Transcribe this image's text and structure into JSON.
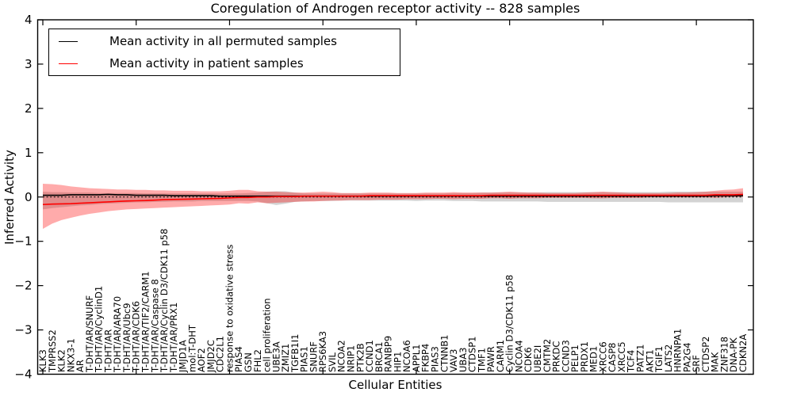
{
  "chart_data": {
    "type": "line",
    "title": "Coregulation of Androgen receptor activity -- 828 samples",
    "xlabel": "Cellular Entities",
    "ylabel": "Inferred Activity",
    "ylim": [
      -4,
      4
    ],
    "yticks": [
      -4,
      -3,
      -2,
      -1,
      0,
      1,
      2,
      3,
      4
    ],
    "x_major_tick_step": 10,
    "grid": false,
    "zero_line": true,
    "legend_position": "upper left",
    "legend": [
      "Mean activity in all permuted samples",
      "Mean activity in patient samples"
    ],
    "colors": {
      "permuted_line": "#000000",
      "patient_line": "#ff0000",
      "permuted_band": "rgba(128,128,128,0.35)",
      "patient_band": "rgba(255,0,0,0.33)"
    },
    "categories": [
      "KLK3",
      "TMPRSS2",
      "KLK2",
      "NKX3-1",
      "AR",
      "T-DHT/AR/SNURF",
      "T-DHT/AR/CyclinD1",
      "T-DHT/AR",
      "T-DHT/AR/ARA70",
      "T-DHT/AR/Ubc9",
      "T-DHT/AR/CDK6",
      "T-DHT/AR/TIF2/CARM1",
      "T-DHT/AR/Caspase 8",
      "T-DHT/AR/Cyclin D3/CDK11 p58",
      "T-DHT/AR/PRX1",
      "JMJD1A",
      "mol:T-DHT",
      "AOF2",
      "JMJD2C",
      "CDC2L1",
      "response to oxidative stress",
      "PIAS4",
      "GSN",
      "FHL2",
      "cell proliferation",
      "UBE3A",
      "ZMIZ1",
      "TGFB1I1",
      "PIAS1",
      "SNURF",
      "RPS6KA3",
      "SVIL",
      "NCOA2",
      "NRIP1",
      "PTK2B",
      "CCND1",
      "BRCA1",
      "RANBP9",
      "HIP1",
      "NCOA6",
      "APPL1",
      "FKBP4",
      "PIAS3",
      "CTNNB1",
      "VAV3",
      "UBA3",
      "CTDSP1",
      "TMF1",
      "PAWR",
      "CARM1",
      "Cyclin D3/CDK11 p58",
      "NCOA4",
      "CDK6",
      "UBE2I",
      "CMTM2",
      "PRKDC",
      "CCND3",
      "PELP1",
      "PRDX1",
      "MED1",
      "XRCC6",
      "CASP8",
      "XRCC5",
      "TCF4",
      "PATZ1",
      "AKT1",
      "TGIF1",
      "LATS2",
      "HNRNPA1",
      "PA2G4",
      "SRF",
      "CTDSP2",
      "MAK",
      "ZNF318",
      "DNA-PK",
      "CDKN2A"
    ],
    "series": [
      {
        "name": "Mean activity in all permuted samples",
        "color": "#000000",
        "values": [
          0.04,
          0.04,
          0.04,
          0.05,
          0.05,
          0.05,
          0.05,
          0.06,
          0.05,
          0.05,
          0.04,
          0.04,
          0.04,
          0.04,
          0.03,
          0.03,
          0.03,
          0.03,
          0.03,
          0.02,
          0.02,
          0.02,
          0.02,
          0.02,
          0.02,
          0.02,
          0.02,
          0.02,
          0.02,
          0.02,
          0.02,
          0.02,
          0.02,
          0.02,
          0.02,
          0.02,
          0.02,
          0.02,
          0.02,
          0.02,
          0.02,
          0.02,
          0.02,
          0.02,
          0.02,
          0.02,
          0.02,
          0.02,
          0.02,
          0.02,
          0.02,
          0.02,
          0.02,
          0.02,
          0.02,
          0.02,
          0.02,
          0.02,
          0.02,
          0.02,
          0.02,
          0.02,
          0.02,
          0.02,
          0.02,
          0.02,
          0.02,
          0.02,
          0.02,
          0.02,
          0.02,
          0.02,
          0.03,
          0.03,
          0.03,
          0.03
        ]
      },
      {
        "name": "Mean activity in patient samples",
        "color": "#ff0000",
        "values": [
          -0.17,
          -0.16,
          -0.155,
          -0.15,
          -0.14,
          -0.13,
          -0.12,
          -0.11,
          -0.1,
          -0.09,
          -0.085,
          -0.08,
          -0.07,
          -0.06,
          -0.055,
          -0.05,
          -0.045,
          -0.04,
          -0.035,
          -0.03,
          -0.02,
          -0.01,
          -0.01,
          0.0,
          0.0,
          0.01,
          0.01,
          0.01,
          0.02,
          0.02,
          0.02,
          0.02,
          0.02,
          0.02,
          0.02,
          0.03,
          0.03,
          0.03,
          0.03,
          0.03,
          0.03,
          0.03,
          0.03,
          0.03,
          0.03,
          0.03,
          0.03,
          0.03,
          0.04,
          0.04,
          0.04,
          0.04,
          0.04,
          0.04,
          0.04,
          0.04,
          0.04,
          0.04,
          0.04,
          0.04,
          0.04,
          0.04,
          0.04,
          0.04,
          0.04,
          0.04,
          0.04,
          0.04,
          0.04,
          0.04,
          0.04,
          0.04,
          0.05,
          0.05,
          0.05,
          0.06
        ]
      }
    ],
    "bands": [
      {
        "name": "permuted-envelope",
        "color": "rgba(128,128,128,0.35)",
        "upper": [
          0.12,
          0.11,
          0.11,
          0.1,
          0.1,
          0.1,
          0.09,
          0.09,
          0.09,
          0.09,
          0.09,
          0.08,
          0.08,
          0.08,
          0.08,
          0.08,
          0.08,
          0.08,
          0.08,
          0.08,
          0.08,
          0.08,
          0.09,
          0.1,
          0.12,
          0.13,
          0.13,
          0.1,
          0.08,
          0.08,
          0.08,
          0.08,
          0.08,
          0.08,
          0.08,
          0.08,
          0.08,
          0.08,
          0.08,
          0.08,
          0.08,
          0.08,
          0.08,
          0.08,
          0.09,
          0.09,
          0.09,
          0.1,
          0.1,
          0.1,
          0.1,
          0.1,
          0.1,
          0.1,
          0.11,
          0.11,
          0.11,
          0.11,
          0.11,
          0.11,
          0.11,
          0.11,
          0.11,
          0.11,
          0.11,
          0.11,
          0.11,
          0.12,
          0.12,
          0.12,
          0.12,
          0.12,
          0.12,
          0.12,
          0.12,
          0.12
        ],
        "lower": [
          -0.28,
          -0.25,
          -0.23,
          -0.21,
          -0.19,
          -0.18,
          -0.16,
          -0.15,
          -0.14,
          -0.13,
          -0.12,
          -0.12,
          -0.11,
          -0.11,
          -0.1,
          -0.1,
          -0.1,
          -0.09,
          -0.09,
          -0.09,
          -0.09,
          -0.09,
          -0.09,
          -0.1,
          -0.14,
          -0.18,
          -0.15,
          -0.11,
          -0.1,
          -0.09,
          -0.09,
          -0.09,
          -0.08,
          -0.08,
          -0.08,
          -0.08,
          -0.08,
          -0.08,
          -0.08,
          -0.08,
          -0.09,
          -0.08,
          -0.08,
          -0.08,
          -0.09,
          -0.09,
          -0.09,
          -0.1,
          -0.1,
          -0.1,
          -0.1,
          -0.1,
          -0.1,
          -0.1,
          -0.11,
          -0.11,
          -0.11,
          -0.11,
          -0.11,
          -0.11,
          -0.11,
          -0.11,
          -0.11,
          -0.11,
          -0.11,
          -0.11,
          -0.11,
          -0.12,
          -0.12,
          -0.12,
          -0.12,
          -0.12,
          -0.12,
          -0.12,
          -0.12,
          -0.12
        ]
      },
      {
        "name": "patient-envelope",
        "color": "rgba(255,0,0,0.33)",
        "upper": [
          0.3,
          0.29,
          0.27,
          0.24,
          0.22,
          0.2,
          0.19,
          0.18,
          0.17,
          0.17,
          0.16,
          0.16,
          0.15,
          0.15,
          0.14,
          0.14,
          0.14,
          0.13,
          0.13,
          0.13,
          0.14,
          0.16,
          0.16,
          0.13,
          0.12,
          0.12,
          0.11,
          0.1,
          0.1,
          0.11,
          0.12,
          0.11,
          0.09,
          0.09,
          0.09,
          0.1,
          0.1,
          0.1,
          0.09,
          0.09,
          0.09,
          0.1,
          0.1,
          0.1,
          0.11,
          0.1,
          0.1,
          0.1,
          0.1,
          0.11,
          0.12,
          0.11,
          0.1,
          0.1,
          0.09,
          0.09,
          0.09,
          0.09,
          0.1,
          0.11,
          0.12,
          0.11,
          0.1,
          0.09,
          0.09,
          0.09,
          0.09,
          0.09,
          0.1,
          0.1,
          0.11,
          0.12,
          0.14,
          0.16,
          0.17,
          0.2
        ],
        "lower": [
          -0.72,
          -0.6,
          -0.52,
          -0.47,
          -0.42,
          -0.38,
          -0.35,
          -0.32,
          -0.3,
          -0.28,
          -0.27,
          -0.26,
          -0.25,
          -0.24,
          -0.23,
          -0.22,
          -0.21,
          -0.2,
          -0.19,
          -0.18,
          -0.17,
          -0.14,
          -0.15,
          -0.12,
          -0.14,
          -0.13,
          -0.12,
          -0.11,
          -0.1,
          -0.1,
          -0.09,
          -0.08,
          -0.08,
          -0.07,
          -0.07,
          -0.07,
          -0.06,
          -0.06,
          -0.06,
          -0.05,
          -0.05,
          -0.05,
          -0.04,
          -0.04,
          -0.05,
          -0.04,
          -0.04,
          -0.04,
          -0.03,
          -0.03,
          -0.04,
          -0.03,
          -0.03,
          -0.03,
          -0.02,
          -0.02,
          -0.02,
          -0.02,
          -0.02,
          -0.03,
          -0.03,
          -0.02,
          -0.02,
          -0.02,
          -0.02,
          -0.01,
          -0.01,
          -0.01,
          -0.01,
          -0.01,
          -0.01,
          -0.01,
          -0.02,
          -0.01,
          0.0,
          0.0
        ]
      }
    ]
  }
}
